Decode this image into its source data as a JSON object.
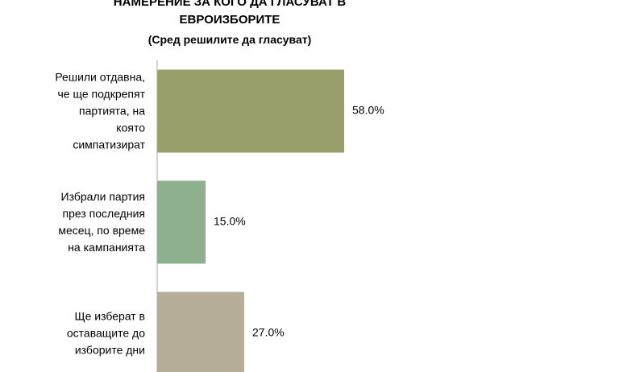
{
  "chart_data": {
    "type": "bar",
    "orientation": "horizontal",
    "title": "НАМЕРЕНИЕ ЗА КОГО ДА ГЛАСУВАТ В\nЕВРОИЗБОРИТЕ",
    "subtitle": "(Сред решилите да гласуват)",
    "categories": [
      "Решили отдавна,\nче ще подкрепят\nпартията, на\nкоято\nсимпатизират",
      "Избрали партия\nпрез последния\nмесец, по време\nна кампанията",
      "Ще изберат в\nоставащите до\nизборите дни"
    ],
    "values": [
      58,
      15,
      27
    ],
    "value_labels": [
      "58.0%",
      "15.0%",
      "27.0%"
    ],
    "colors": [
      "#9a9e6a",
      "#8fb08f",
      "#b7ae9a"
    ],
    "xlim": [
      0,
      140
    ]
  }
}
